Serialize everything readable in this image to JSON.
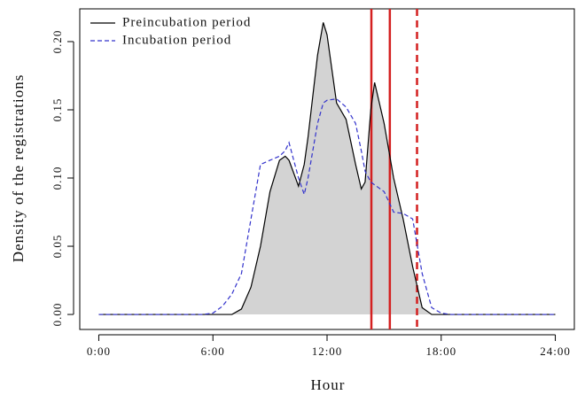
{
  "chart_data": {
    "type": "line",
    "x_label": "Hour",
    "y_label": "Density of the registrations",
    "x": [
      0,
      5.5,
      6,
      6.5,
      7,
      7.5,
      8,
      8.5,
      9,
      9.5,
      9.8,
      10,
      10.5,
      10.8,
      11,
      11.5,
      11.8,
      12,
      12.5,
      13,
      13.5,
      13.8,
      14,
      14.3,
      14.5,
      15,
      15.5,
      16,
      16.5,
      17,
      17.5,
      18,
      18.5,
      24
    ],
    "series": [
      {
        "name": "Preincubation period",
        "color": "#000000",
        "dash": false,
        "fill": "#d3d3d3",
        "values": [
          0,
          0,
          0,
          0,
          0,
          0.004,
          0.02,
          0.05,
          0.09,
          0.113,
          0.116,
          0.113,
          0.094,
          0.11,
          0.13,
          0.19,
          0.214,
          0.205,
          0.155,
          0.143,
          0.11,
          0.092,
          0.097,
          0.15,
          0.17,
          0.14,
          0.1,
          0.07,
          0.035,
          0.005,
          0,
          0,
          0,
          0
        ]
      },
      {
        "name": "Incubation period",
        "color": "#3333cc",
        "dash": true,
        "values": [
          0,
          0,
          0.001,
          0.006,
          0.015,
          0.03,
          0.07,
          0.11,
          0.113,
          0.116,
          0.12,
          0.126,
          0.1,
          0.088,
          0.1,
          0.14,
          0.155,
          0.157,
          0.158,
          0.152,
          0.14,
          0.12,
          0.105,
          0.097,
          0.095,
          0.09,
          0.075,
          0.074,
          0.07,
          0.03,
          0.005,
          0.001,
          0,
          0
        ]
      }
    ],
    "vertical_lines": [
      {
        "x": 14.33,
        "color": "#d42020",
        "dash": false
      },
      {
        "x": 15.3,
        "color": "#d42020",
        "dash": false
      },
      {
        "x": 16.73,
        "color": "#d42020",
        "dash": true
      }
    ],
    "xlim": [
      -1,
      25
    ],
    "ylim": [
      -0.011,
      0.224
    ],
    "xticks": [
      {
        "value": 0,
        "label": "0:00"
      },
      {
        "value": 6,
        "label": "6:00"
      },
      {
        "value": 12,
        "label": "12:00"
      },
      {
        "value": 18,
        "label": "18:00"
      },
      {
        "value": 24,
        "label": "24:00"
      }
    ],
    "yticks": [
      {
        "value": 0,
        "label": "0.00"
      },
      {
        "value": 0.05,
        "label": "0.05"
      },
      {
        "value": 0.1,
        "label": "0.10"
      },
      {
        "value": 0.15,
        "label": "0.15"
      },
      {
        "value": 0.2,
        "label": "0.20"
      }
    ],
    "legend": "top-left"
  }
}
